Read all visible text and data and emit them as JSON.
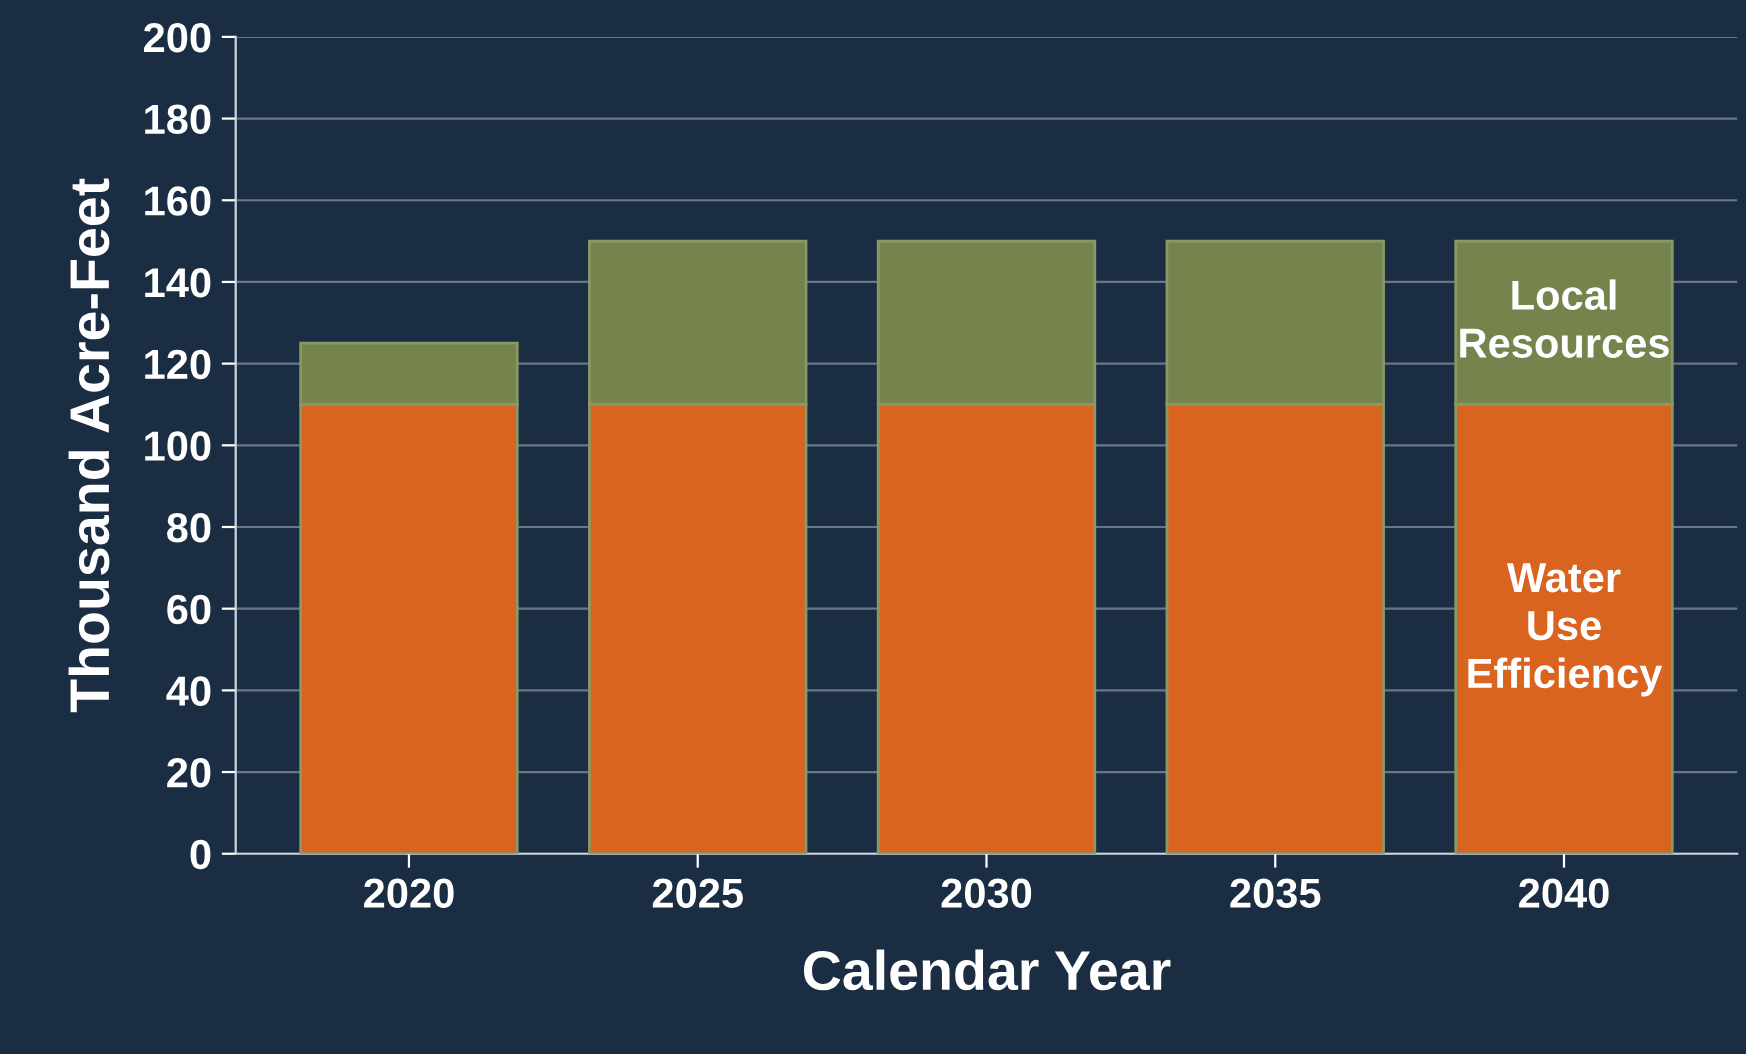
{
  "chart_data": {
    "type": "bar",
    "stacked": true,
    "xlabel": "Calendar Year",
    "ylabel": "Thousand Acre-Feet",
    "categories": [
      "2020",
      "2025",
      "2030",
      "2035",
      "2040"
    ],
    "series": [
      {
        "name": "Water\nUse\nEfficiency",
        "color": "#d9641f",
        "values": [
          110,
          110,
          110,
          110,
          110
        ]
      },
      {
        "name": "Local\nResources",
        "color": "#75834c",
        "values": [
          15,
          40,
          40,
          40,
          40
        ]
      }
    ],
    "ylim": [
      0,
      200
    ],
    "yticks": [
      0,
      20,
      40,
      60,
      80,
      100,
      120,
      140,
      160,
      180,
      200
    ],
    "grid": "y",
    "legend": false
  }
}
